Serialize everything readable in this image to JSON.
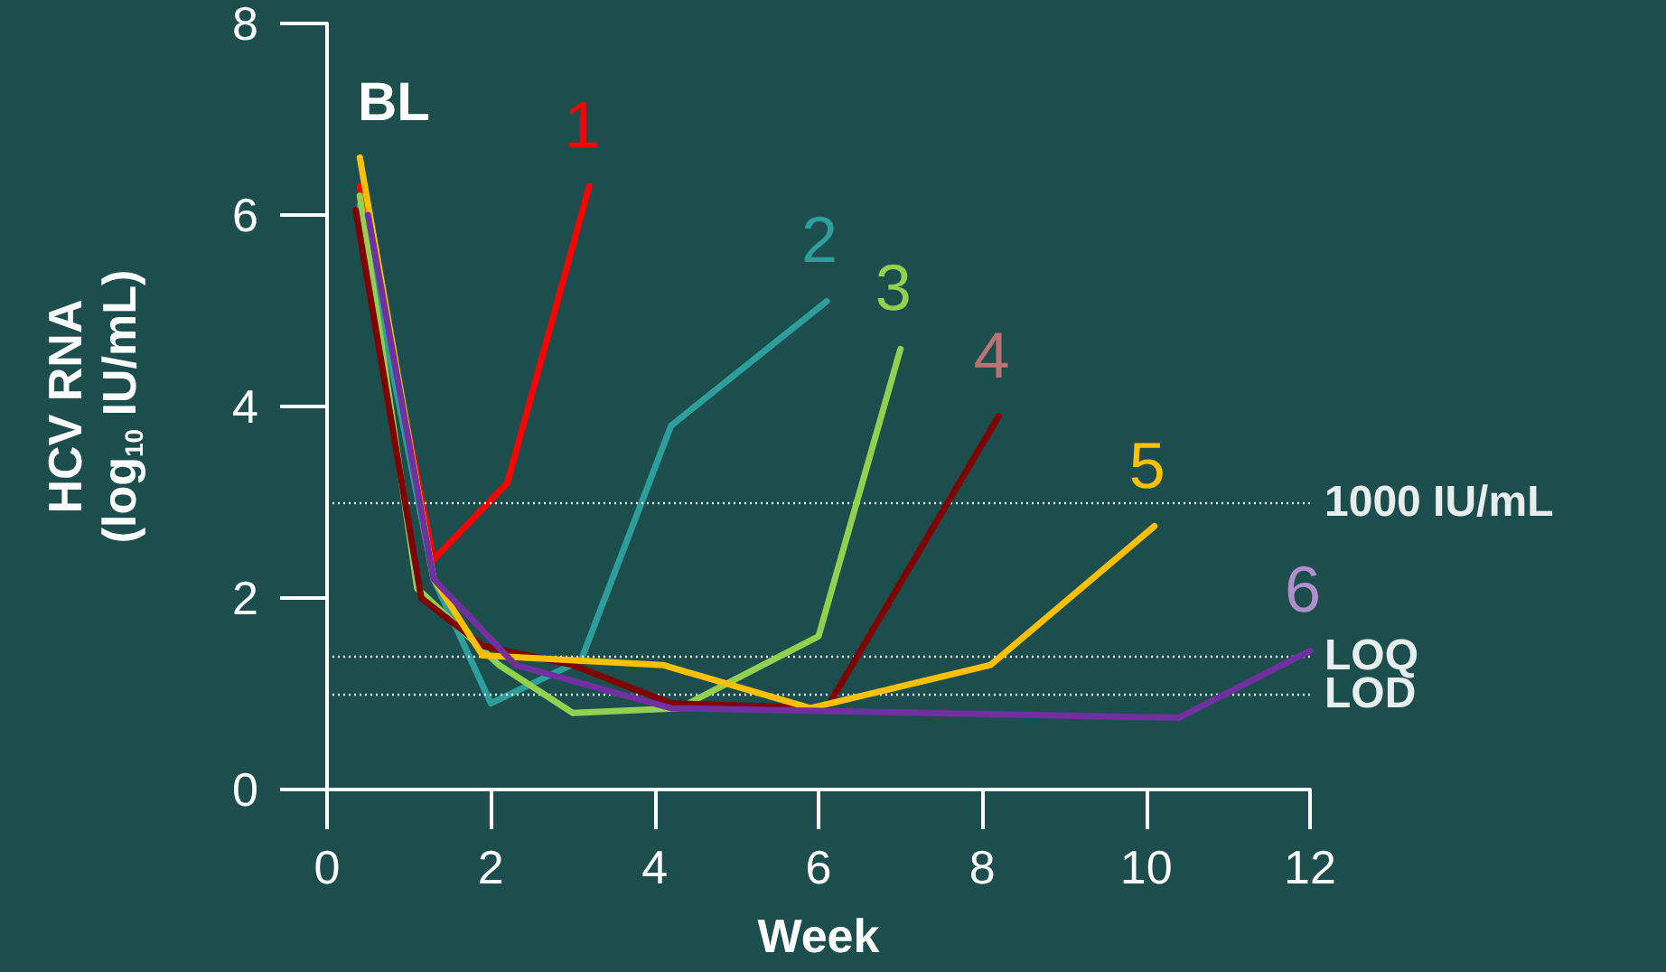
{
  "chart_data": {
    "type": "line",
    "xlabel": "Week",
    "ylabel": "HCV RNA\n(log$_{10}$ IU/mL)",
    "annotations": [
      "BL"
    ],
    "xlim": [
      0,
      12
    ],
    "xticks": [
      0,
      2,
      4,
      6,
      8,
      10,
      12
    ],
    "ylim": [
      0,
      8
    ],
    "yticks": [
      0,
      2,
      4,
      6,
      8
    ],
    "grid": false,
    "marker": "none",
    "line_style": "solid",
    "ref_lines": [
      {
        "axis": "y",
        "value": 3,
        "label": "1000 IU/mL",
        "color": "#ffffff",
        "line_style": "dotted"
      },
      {
        "axis": "y",
        "value": 1.4,
        "label": "LOQ",
        "color": "#ffffff",
        "line_style": "dotted"
      },
      {
        "axis": "y",
        "value": 1,
        "label": "LOD",
        "color": "#ffffff",
        "line_style": "dotted"
      }
    ],
    "series": [
      {
        "name": "1",
        "color": "#ff0000",
        "x": [
          0.4,
          1.3,
          2.2,
          3.2
        ],
        "values": [
          6.3,
          2.4,
          3.2,
          6.3
        ]
      },
      {
        "name": "2",
        "color": "#2e9e9a",
        "x": [
          0.4,
          1.3,
          2.0,
          3.1,
          4.2,
          6.1
        ],
        "values": [
          6.1,
          2.2,
          0.9,
          1.35,
          3.8,
          5.1
        ]
      },
      {
        "name": "3",
        "color": "#92d050",
        "x": [
          0.4,
          1.1,
          2.1,
          3.0,
          4.3,
          6.0,
          7.0
        ],
        "values": [
          6.2,
          2.1,
          1.3,
          0.8,
          0.85,
          1.6,
          4.6
        ]
      },
      {
        "name": "4",
        "color": "#800000",
        "x": [
          0.35,
          1.15,
          1.9,
          3.0,
          4.2,
          6.1,
          8.2
        ],
        "values": [
          6.05,
          2.0,
          1.5,
          1.3,
          0.9,
          0.85,
          3.9
        ]
      },
      {
        "name": "5",
        "color": "#ffc000",
        "x": [
          0.4,
          1.3,
          1.9,
          4.1,
          5.9,
          8.1,
          10.1
        ],
        "values": [
          6.6,
          2.2,
          1.4,
          1.3,
          0.85,
          1.3,
          2.75
        ]
      },
      {
        "name": "6",
        "color": "#7030a0",
        "x": [
          0.5,
          1.3,
          2.3,
          4.2,
          10.4,
          12
        ],
        "values": [
          6.0,
          2.2,
          1.3,
          0.85,
          0.75,
          1.45
        ]
      }
    ]
  }
}
